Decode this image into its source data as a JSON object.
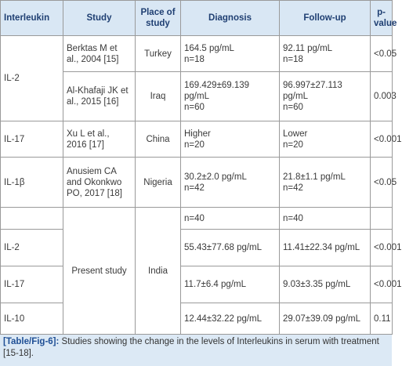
{
  "table": {
    "header": [
      "Interleukin",
      "Study",
      "Place of study",
      "Diagnosis",
      "Follow-up",
      "p-value"
    ],
    "rows": [
      {
        "interleukin": "IL-2",
        "study": "Berktas M et al., 2004 [15]",
        "place": "Turkey",
        "diagnosis": [
          "164.5 pg/mL",
          "n=18"
        ],
        "follow_up": [
          "92.11 pg/mL",
          "n=18"
        ],
        "p_value": "<0.05"
      },
      {
        "study": "Al-Khafaji JK et al., 2015 [16]",
        "place": "Iraq",
        "diagnosis": [
          "169.429±69.139 pg/mL",
          "n=60"
        ],
        "follow_up": [
          "96.997±27.113 pg/mL",
          "n=60"
        ],
        "p_value": "0.003"
      },
      {
        "interleukin": "IL-17",
        "study": "Xu L et al., 2016 [17]",
        "place": "China",
        "diagnosis": [
          "Higher",
          "n=20"
        ],
        "follow_up": [
          "Lower",
          "n=20"
        ],
        "p_value": "<0.001"
      },
      {
        "interleukin": "IL-1β",
        "study": "Anusiem CA and Okonkwo PO, 2017 [18]",
        "place": "Nigeria",
        "diagnosis": [
          "30.2±2.0 pg/mL",
          "n=42"
        ],
        "follow_up": [
          "21.8±1.1 pg/mL",
          "n=42"
        ],
        "p_value": "<0.05"
      },
      {
        "study": "Present study",
        "place": "India",
        "diagnosis": "n=40",
        "follow_up": "n=40"
      },
      {
        "interleukin": "IL-2",
        "diagnosis": "55.43±77.68 pg/mL",
        "follow_up": "11.41±22.34 pg/mL",
        "p_value": "<0.001"
      },
      {
        "interleukin": "IL-17",
        "diagnosis": "11.7±6.4 pg/mL",
        "follow_up": "9.03±3.35 pg/mL",
        "p_value": "<0.001"
      },
      {
        "interleukin": "IL-10",
        "diagnosis": "12.44±32.22 pg/mL",
        "follow_up": "29.07±39.09 pg/mL",
        "p_value": "0.11"
      }
    ],
    "caption": {
      "label": "[Table/Fig-6]:",
      "text": "Studies showing the change in the levels of Interleukins in serum with treatment [15-18]."
    }
  }
}
